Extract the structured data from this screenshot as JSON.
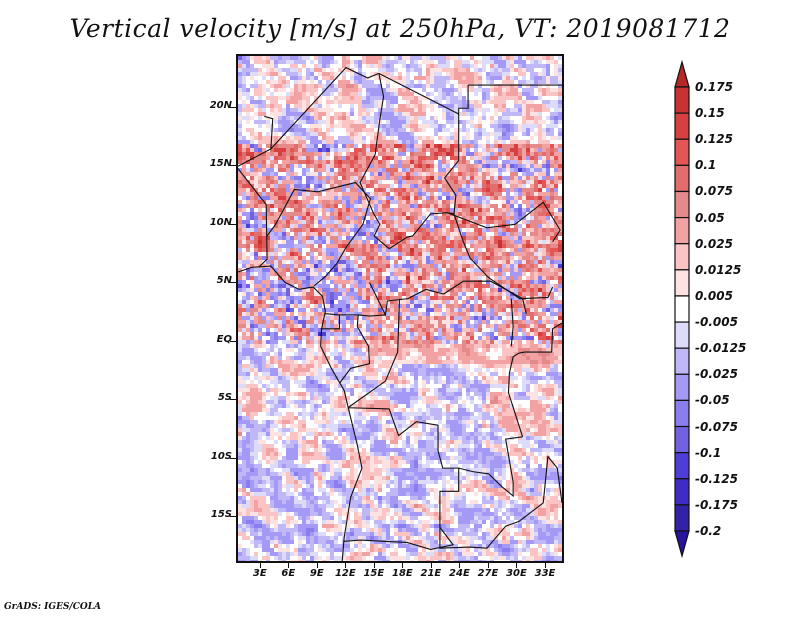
{
  "title": "Vertical velocity [m/s] at 250hPa, VT: 2019081712",
  "footer": "GrADS: IGES/COLA",
  "map": {
    "projection": "latlon",
    "lon_range": [
      0.5,
      35
    ],
    "lat_range": [
      -19,
      24.5
    ],
    "y_ticks": [
      {
        "label": "20N",
        "lat": 20
      },
      {
        "label": "15N",
        "lat": 15
      },
      {
        "label": "10N",
        "lat": 10
      },
      {
        "label": "5N",
        "lat": 5
      },
      {
        "label": "EQ",
        "lat": 0
      },
      {
        "label": "5S",
        "lat": -5
      },
      {
        "label": "10S",
        "lat": -10
      },
      {
        "label": "15S",
        "lat": -15
      }
    ],
    "x_ticks": [
      {
        "label": "3E",
        "lon": 3
      },
      {
        "label": "6E",
        "lon": 6
      },
      {
        "label": "9E",
        "lon": 9
      },
      {
        "label": "12E",
        "lon": 12
      },
      {
        "label": "15E",
        "lon": 15
      },
      {
        "label": "18E",
        "lon": 18
      },
      {
        "label": "21E",
        "lon": 21
      },
      {
        "label": "24E",
        "lon": 24
      },
      {
        "label": "27E",
        "lon": 27
      },
      {
        "label": "30E",
        "lon": 30
      },
      {
        "label": "33E",
        "lon": 33
      }
    ],
    "variable": "vertical velocity",
    "units": "m/s",
    "level": "250hPa",
    "valid_time": "2019081712"
  },
  "colorbar": {
    "levels": [
      "0.175",
      "0.15",
      "0.125",
      "0.1",
      "0.075",
      "0.05",
      "0.025",
      "0.0125",
      "0.005",
      "-0.005",
      "-0.0125",
      "-0.025",
      "-0.05",
      "-0.075",
      "-0.1",
      "-0.125",
      "-0.175",
      "-0.2"
    ],
    "colors_top_to_bottom": [
      "#b42828",
      "#c83232",
      "#d74040",
      "#e45656",
      "#e26d6d",
      "#e48a8a",
      "#f2a2a2",
      "#fbc4c4",
      "#fde2e2",
      "#ffffff",
      "#dcdcfa",
      "#c0b8f6",
      "#a49af6",
      "#8a7eee",
      "#7262e2",
      "#4e3ed6",
      "#3e2cc4",
      "#3222a8",
      "#28149c"
    ],
    "arrow_top_color": "#b42828",
    "arrow_bottom_color": "#28149c"
  },
  "chart_data": {
    "type": "heatmap",
    "title": "Vertical velocity [m/s] at 250hPa, VT: 2019081712",
    "xlabel": "",
    "ylabel": "",
    "x_tick_labels": [
      "3E",
      "6E",
      "9E",
      "12E",
      "15E",
      "18E",
      "21E",
      "24E",
      "27E",
      "30E",
      "33E"
    ],
    "y_tick_labels": [
      "20N",
      "15N",
      "10N",
      "5N",
      "EQ",
      "5S",
      "10S",
      "15S"
    ],
    "colorbar_levels": [
      0.175,
      0.15,
      0.125,
      0.1,
      0.075,
      0.05,
      0.025,
      0.0125,
      0.005,
      -0.005,
      -0.0125,
      -0.025,
      -0.05,
      -0.075,
      -0.1,
      -0.125,
      -0.175,
      -0.2
    ],
    "value_range": [
      -0.2,
      0.175
    ],
    "notes": "Shaded field: mixed positive (red, upward) and negative (blue) values; stronger positive bands near 8-17N and central Africa 0-8N."
  }
}
